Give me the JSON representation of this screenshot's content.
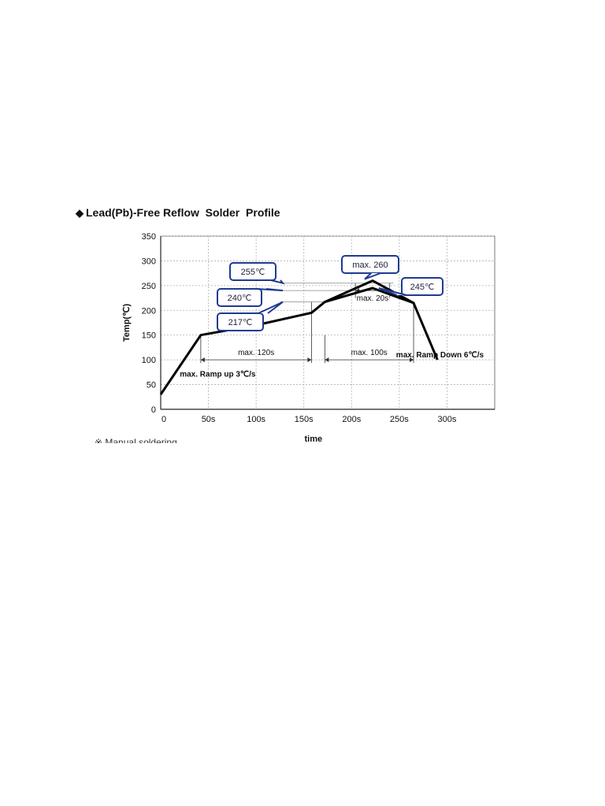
{
  "title": "Lead(Pb)-Free Reflow  Solder  Profile",
  "title_marker": "◆",
  "footnote": "※ Manual soldering",
  "colors": {
    "curve": "#000000",
    "callout_border": "#1f3a93",
    "callout_text": "#1f1f3f",
    "grid": "#b0b0b0",
    "guide": "#888888"
  },
  "chart_data": {
    "type": "line",
    "title": "Lead(Pb)-Free Reflow  Solder  Profile",
    "xlabel": "time",
    "ylabel": "Temp(℃)",
    "xlim": [
      0,
      350
    ],
    "ylim": [
      0,
      350
    ],
    "grid": true,
    "x_ticks": [
      0,
      50,
      100,
      150,
      200,
      250,
      300
    ],
    "x_tick_labels": [
      "0",
      "50s",
      "100s",
      "150s",
      "200s",
      "250s",
      "300s"
    ],
    "y_ticks": [
      0,
      50,
      100,
      150,
      200,
      250,
      300,
      350
    ],
    "y_tick_labels": [
      "0",
      "50",
      "100",
      "150",
      "200",
      "250",
      "300",
      "350"
    ],
    "series": [
      {
        "x": [
          0,
          42,
          100,
          158,
          172,
          222,
          265,
          290
        ],
        "y": [
          30,
          150,
          170,
          195,
          217,
          260,
          215,
          100
        ]
      },
      {
        "x": [
          172,
          222,
          265
        ],
        "y": [
          217,
          245,
          215
        ]
      }
    ],
    "reference_levels": [
      {
        "label": "255℃",
        "y": 255
      },
      {
        "label": "240℃",
        "y": 240
      },
      {
        "label": "217℃",
        "y": 217
      }
    ],
    "peak_callouts": [
      {
        "label": "max. 260",
        "x": 222,
        "y": 260
      },
      {
        "label": "245℃",
        "x": 222,
        "y": 245
      }
    ],
    "intervals": [
      {
        "label": "max. 120s",
        "x_start": 42,
        "x_end": 158,
        "y": 100
      },
      {
        "label": "max. 100s",
        "x_start": 172,
        "x_end": 265,
        "y": 100
      },
      {
        "label": "max. 20s",
        "x_start": 204,
        "x_end": 240,
        "y": 240
      }
    ],
    "annotations": [
      {
        "text": "max.  Ramp up 3℃/s",
        "x": 20,
        "y": 50
      },
      {
        "text": "max. Ramp Down 6℃/s",
        "x": 245,
        "y": 75
      }
    ]
  }
}
